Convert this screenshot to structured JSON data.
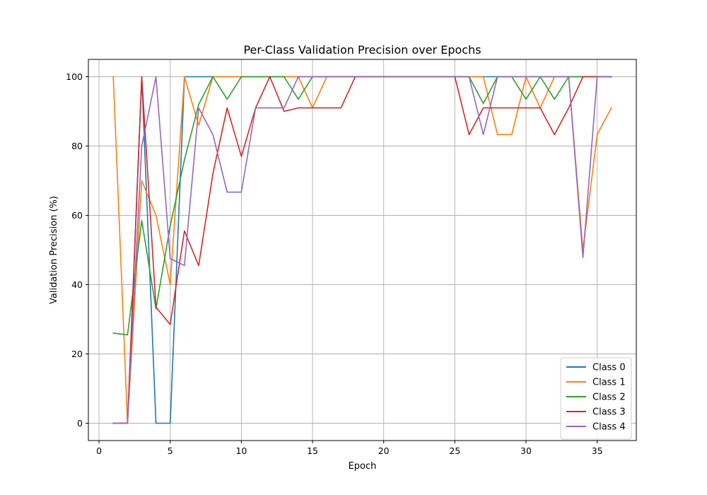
{
  "chart_data": {
    "type": "line",
    "title": "Per-Class Validation Precision over Epochs",
    "xlabel": "Epoch",
    "ylabel": "Validation Precision (%)",
    "xlim": [
      -0.75,
      37.75
    ],
    "ylim": [
      -5,
      105
    ],
    "xticks": [
      0,
      5,
      10,
      15,
      20,
      25,
      30,
      35
    ],
    "yticks": [
      0,
      20,
      40,
      60,
      80,
      100
    ],
    "grid": true,
    "legend_position": "lower-right",
    "x": [
      1,
      2,
      3,
      4,
      5,
      6,
      7,
      8,
      9,
      10,
      11,
      12,
      13,
      14,
      15,
      16,
      17,
      18,
      19,
      20,
      21,
      22,
      23,
      24,
      25,
      26,
      27,
      28,
      29,
      30,
      31,
      32,
      33,
      34,
      35,
      36
    ],
    "series": [
      {
        "name": "Class 0",
        "color": "#1f77b4",
        "values": [
          0,
          0,
          100,
          0,
          0,
          100,
          100,
          100,
          100,
          100,
          100,
          100,
          100,
          100,
          100,
          100,
          100,
          100,
          100,
          100,
          100,
          100,
          100,
          100,
          100,
          100,
          100,
          100,
          100,
          100,
          100,
          100,
          100,
          100,
          100,
          100
        ]
      },
      {
        "name": "Class 1",
        "color": "#ff7f0e",
        "values": [
          100,
          0,
          70,
          60,
          40,
          100,
          86,
          100,
          100,
          100,
          100,
          100,
          100,
          100,
          91,
          100,
          100,
          100,
          100,
          100,
          100,
          100,
          100,
          100,
          100,
          100,
          100,
          83.3,
          83.3,
          100,
          91,
          100,
          100,
          50,
          83.3,
          91
        ]
      },
      {
        "name": "Class 2",
        "color": "#2ca02c",
        "values": [
          26,
          25.5,
          58.5,
          33,
          57,
          76,
          92,
          100,
          93.5,
          100,
          100,
          100,
          100,
          93.5,
          100,
          100,
          100,
          100,
          100,
          100,
          100,
          100,
          100,
          100,
          100,
          100,
          92.3,
          100,
          100,
          93.5,
          100,
          93.5,
          100,
          100,
          100,
          100
        ]
      },
      {
        "name": "Class 3",
        "color": "#d62728",
        "values": [
          0,
          0,
          100,
          33.5,
          28.5,
          55.5,
          45.5,
          72,
          91,
          77,
          91,
          100,
          90,
          91,
          91,
          91,
          91,
          100,
          100,
          100,
          100,
          100,
          100,
          100,
          100,
          83.3,
          91,
          91,
          91,
          91,
          91,
          83.3,
          91,
          100,
          100,
          100
        ]
      },
      {
        "name": "Class 4",
        "color": "#9467bd",
        "values": [
          0,
          0,
          80,
          100,
          47.5,
          45.5,
          91,
          83.3,
          66.7,
          66.7,
          91,
          91,
          91,
          100,
          100,
          100,
          100,
          100,
          100,
          100,
          100,
          100,
          100,
          100,
          100,
          100,
          83.3,
          100,
          100,
          100,
          100,
          100,
          100,
          47.8,
          100,
          100
        ]
      }
    ]
  }
}
